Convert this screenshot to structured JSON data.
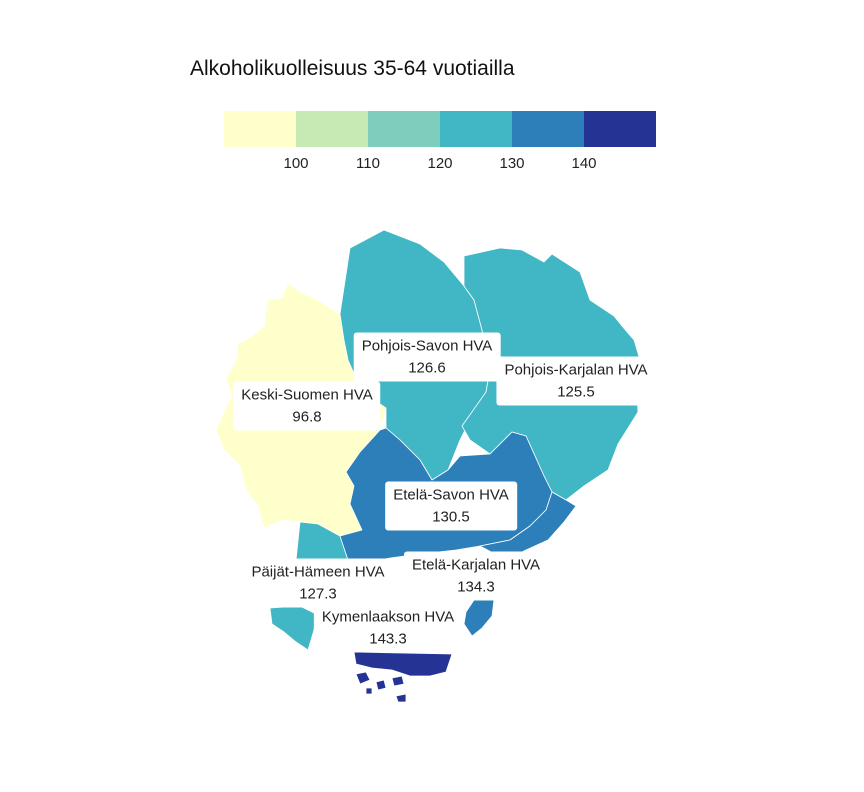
{
  "title": "Alkoholikuolleisuus 35-64 vuotiailla",
  "legend": {
    "colors": [
      "#ffffcc",
      "#c7e9b4",
      "#7fcdbb",
      "#41b6c4",
      "#2c7fb8",
      "#253494"
    ],
    "ticks": [
      "100",
      "110",
      "120",
      "130",
      "140"
    ]
  },
  "regions": [
    {
      "name": "Keski-Suomen HVA",
      "value": "96.8",
      "color": "#ffffcc"
    },
    {
      "name": "Pohjois-Savon HVA",
      "value": "126.6",
      "color": "#41b6c4"
    },
    {
      "name": "Pohjois-Karjalan HVA",
      "value": "125.5",
      "color": "#41b6c4"
    },
    {
      "name": "Etelä-Savon HVA",
      "value": "130.5",
      "color": "#2c7fb8"
    },
    {
      "name": "Päijät-Hämeen HVA",
      "value": "127.3",
      "color": "#41b6c4"
    },
    {
      "name": "Etelä-Karjalan HVA",
      "value": "134.3",
      "color": "#2c7fb8"
    },
    {
      "name": "Kymenlaakson HVA",
      "value": "143.3",
      "color": "#253494"
    }
  ]
}
